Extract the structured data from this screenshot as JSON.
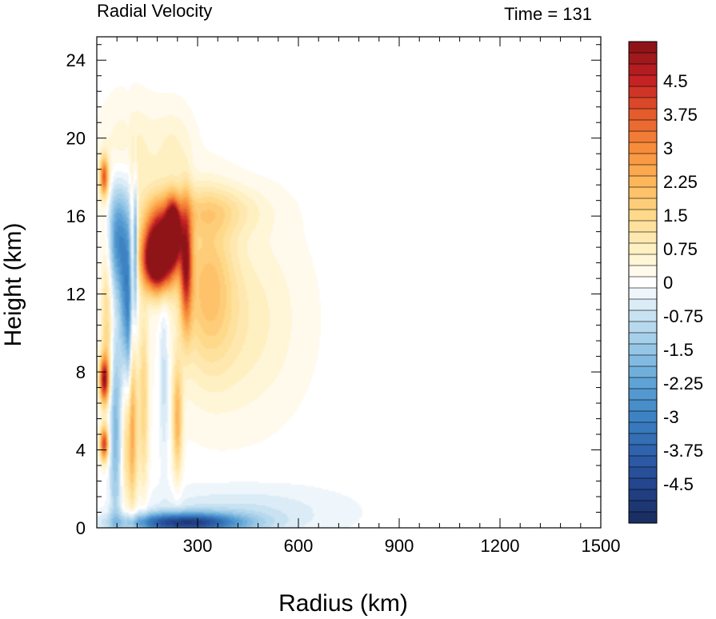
{
  "chart_data": {
    "type": "heatmap",
    "title": "Radial Velocity",
    "subtitle": "Time = 131",
    "xlabel": "Radius (km)",
    "ylabel": "Height (km)",
    "xlim": [
      0,
      1500
    ],
    "ylim": [
      0,
      25.2
    ],
    "xticks": [
      300,
      600,
      900,
      1200,
      1500
    ],
    "xtick_labels": [
      "300",
      "600",
      "900",
      "1200",
      "1500"
    ],
    "yticks": [
      0,
      4,
      8,
      12,
      16,
      20,
      24
    ],
    "ytick_labels": [
      "0",
      "4",
      "8",
      "12",
      "16",
      "20",
      "24"
    ],
    "grid": false,
    "legend": "colorbar-right",
    "colorbar": {
      "min": -5.25,
      "max": 5.25,
      "step": 0.25,
      "labels": [
        4.5,
        3.75,
        3,
        2.25,
        1.5,
        0.75,
        0,
        -0.75,
        -1.5,
        -2.25,
        -3,
        -3.75,
        -4.5
      ],
      "label_text": [
        "4.5",
        "3.75",
        "3",
        "2.25",
        "1.5",
        "0.75",
        "0",
        "-0.75",
        "-1.5",
        "-2.25",
        "-3",
        "-3.75",
        "-4.5"
      ],
      "colormap": [
        [
          -5.25,
          "#1a2f63"
        ],
        [
          -4.5,
          "#23468f"
        ],
        [
          -3.75,
          "#2f63ad"
        ],
        [
          -3.0,
          "#3d83c3"
        ],
        [
          -2.25,
          "#5fa3d6"
        ],
        [
          -1.5,
          "#95c6e6"
        ],
        [
          -0.75,
          "#c8e2f2"
        ],
        [
          -0.25,
          "#eef6fb"
        ],
        [
          0.0,
          "#ffffff"
        ],
        [
          0.25,
          "#fffaeb"
        ],
        [
          0.75,
          "#fff0c2"
        ],
        [
          1.5,
          "#fed98a"
        ],
        [
          2.25,
          "#fdb65a"
        ],
        [
          3.0,
          "#f78c3a"
        ],
        [
          3.75,
          "#e45b2c"
        ],
        [
          4.5,
          "#c52224"
        ],
        [
          5.25,
          "#8e1418"
        ]
      ]
    },
    "features": [
      {
        "r": 115,
        "z": 14.5,
        "sr": 4,
        "sz": 2.2,
        "v": -3.0
      },
      {
        "r": 85,
        "z": 12,
        "sr": 12,
        "sz": 3.5,
        "v": -2.4
      },
      {
        "r": 60,
        "z": 15,
        "sr": 18,
        "sz": 2.0,
        "v": -2.6
      },
      {
        "r": 95,
        "z": 9,
        "sr": 6,
        "sz": 5.0,
        "v": -1.6
      },
      {
        "r": 195,
        "z": 14.6,
        "sr": 38,
        "sz": 1.4,
        "v": 5.6
      },
      {
        "r": 175,
        "z": 13.6,
        "sr": 28,
        "sz": 1.0,
        "v": 4.2
      },
      {
        "r": 228,
        "z": 15.3,
        "sr": 14,
        "sz": 1.0,
        "v": 5.0
      },
      {
        "r": 266,
        "z": 13.5,
        "sr": 12,
        "sz": 2.2,
        "v": 3.8
      },
      {
        "r": 330,
        "z": 12.5,
        "sr": 55,
        "sz": 2.8,
        "v": 1.6
      },
      {
        "r": 440,
        "z": 11.5,
        "sr": 120,
        "sz": 3.2,
        "v": 0.6
      },
      {
        "r": 380,
        "z": 8.5,
        "sr": 140,
        "sz": 2.8,
        "v": 0.3
      },
      {
        "r": 330,
        "z": 16.3,
        "sr": 110,
        "sz": 0.9,
        "v": 1.1
      },
      {
        "r": 22,
        "z": 7.6,
        "sr": 10,
        "sz": 0.8,
        "v": 4.5
      },
      {
        "r": 22,
        "z": 4.3,
        "sr": 9,
        "sz": 0.6,
        "v": 4.0
      },
      {
        "r": 22,
        "z": 18,
        "sr": 9,
        "sz": 0.7,
        "v": 3.5
      },
      {
        "r": 30,
        "z": 10.5,
        "sr": 12,
        "sz": 3.0,
        "v": 1.5
      },
      {
        "r": 55,
        "z": 5,
        "sr": 12,
        "sz": 3.5,
        "v": -1.8
      },
      {
        "r": 100,
        "z": 5,
        "sr": 14,
        "sz": 3.0,
        "v": 3.0
      },
      {
        "r": 140,
        "z": 6.5,
        "sr": 10,
        "sz": 3.5,
        "v": 1.5
      },
      {
        "r": 240,
        "z": 5.5,
        "sr": 10,
        "sz": 2.0,
        "v": 2.2
      },
      {
        "r": 200,
        "z": 8,
        "sr": 10,
        "sz": 3.0,
        "v": -0.9
      },
      {
        "r": 260,
        "z": 0.25,
        "sr": 120,
        "sz": 0.35,
        "v": -4.5
      },
      {
        "r": 420,
        "z": 0.8,
        "sr": 200,
        "sz": 0.9,
        "v": -0.7
      },
      {
        "r": 100,
        "z": 19,
        "sr": 60,
        "sz": 2.0,
        "v": 0.8
      },
      {
        "r": 230,
        "z": 19.5,
        "sr": 40,
        "sz": 1.5,
        "v": 0.6
      }
    ]
  }
}
